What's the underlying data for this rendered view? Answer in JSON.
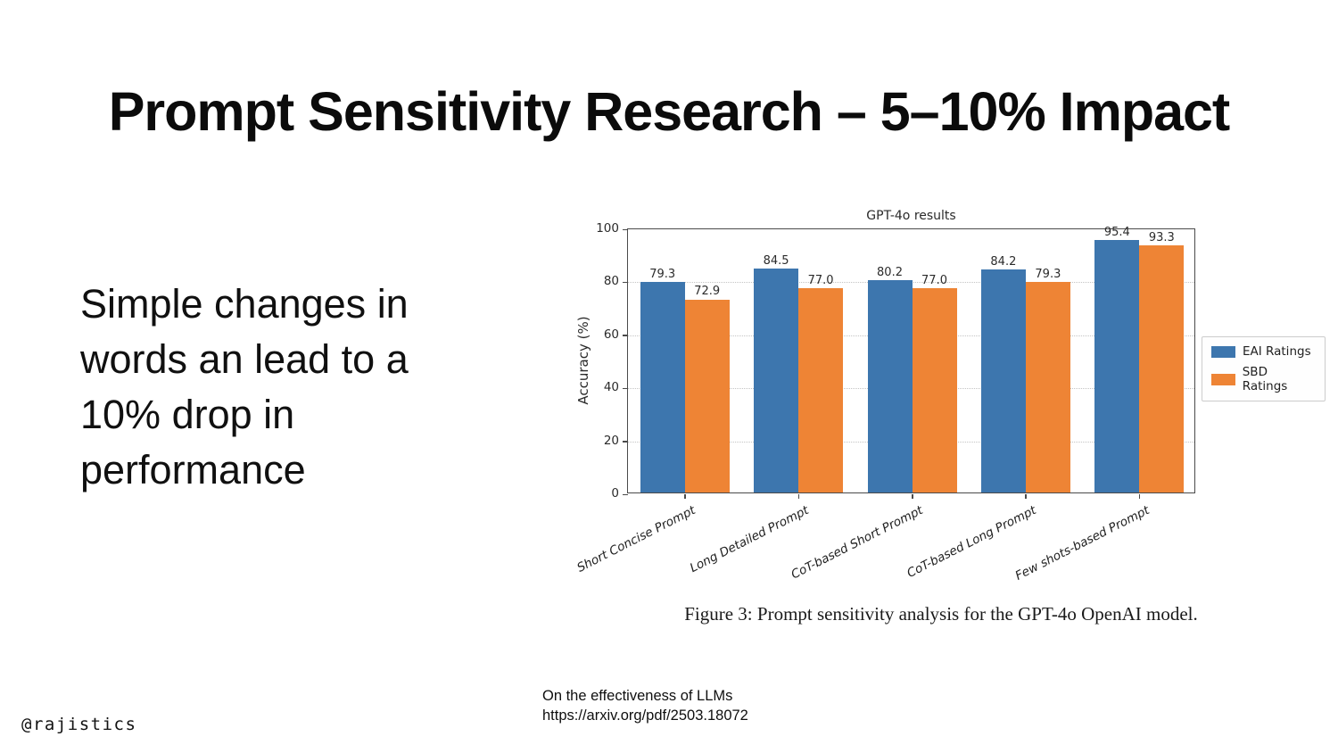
{
  "slide": {
    "title": "Prompt Sensitivity Research – 5–10% Impact",
    "body_text": "Simple changes in\nwords an lead to a\n10% drop in\nperformance",
    "figure_caption": "Figure 3: Prompt sensitivity analysis for the GPT-4o OpenAI model.",
    "source_text": "On the effectiveness of LLMs\nhttps://arxiv.org/pdf/2503.18072",
    "handle": "@rajistics"
  },
  "chart_data": {
    "type": "bar",
    "title": "GPT-4o results",
    "xlabel": "",
    "ylabel": "Accuracy (%)",
    "ylim": [
      0,
      100
    ],
    "yticks": [
      0,
      20,
      40,
      60,
      80,
      100
    ],
    "grid": "horizontal-dotted",
    "legend_position": "right-outside",
    "categories": [
      "Short Concise Prompt",
      "Long Detailed Prompt",
      "CoT-based Short Prompt",
      "CoT-based Long Prompt",
      "Few shots-based Prompt"
    ],
    "series": [
      {
        "name": "EAI Ratings",
        "color": "#3d76ae",
        "values": [
          79.3,
          84.5,
          80.2,
          84.2,
          95.4
        ]
      },
      {
        "name": "SBD Ratings",
        "color": "#ee8435",
        "values": [
          72.9,
          77.0,
          77.0,
          79.3,
          93.3
        ]
      }
    ],
    "value_label_decimals": 1
  }
}
